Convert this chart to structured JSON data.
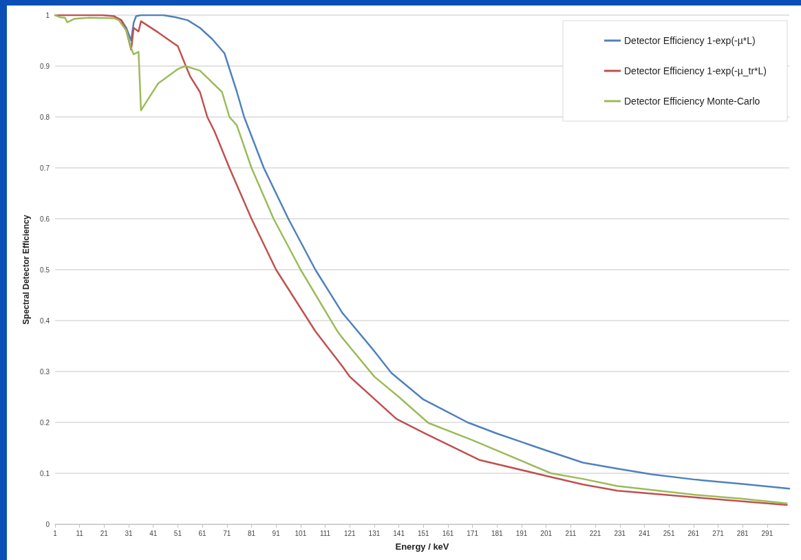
{
  "chart_data": {
    "type": "line",
    "xlabel": "Energy / keV",
    "ylabel": "Spectral Detector Efficiency",
    "xlim": [
      1,
      300
    ],
    "xticks": [
      1,
      11,
      21,
      31,
      41,
      51,
      61,
      71,
      81,
      91,
      101,
      111,
      121,
      131,
      141,
      151,
      161,
      171,
      181,
      191,
      201,
      211,
      221,
      231,
      241,
      251,
      261,
      271,
      281,
      291
    ],
    "ylim": [
      0,
      1
    ],
    "yticks": [
      0,
      0.1,
      0.2,
      0.3,
      0.4,
      0.5,
      0.6,
      0.7,
      0.8,
      0.9,
      1
    ],
    "grid": "y",
    "legend": "top right",
    "marker": "none",
    "line_style": "solid",
    "series": [
      {
        "name": "Detector Efficiency 1-exp(-µ*L)",
        "color": "#4f81bd",
        "x": [
          25,
          28,
          30,
          32,
          33,
          34,
          36,
          45,
          50,
          55,
          60,
          65,
          70,
          75,
          78,
          86,
          96,
          107,
          118,
          121,
          131,
          138,
          151,
          161,
          169,
          181,
          201,
          216,
          230,
          244,
          261,
          281,
          300
        ],
        "values": [
          0.998,
          0.99,
          0.975,
          0.95,
          0.985,
          0.998,
          1,
          1,
          0.996,
          0.99,
          0.975,
          0.953,
          0.925,
          0.85,
          0.8,
          0.7,
          0.6,
          0.5,
          0.415,
          0.398,
          0.34,
          0.297,
          0.245,
          0.22,
          0.2,
          0.178,
          0.145,
          0.121,
          0.109,
          0.098,
          0.088,
          0.079,
          0.07
        ]
      },
      {
        "name": "Detector Efficiency 1-exp(-µ_tr*L)",
        "color": "#c0504d",
        "x": [
          1,
          10,
          20,
          25,
          28,
          30,
          32,
          33,
          35,
          36,
          43,
          51,
          54,
          56,
          60,
          63,
          66,
          72,
          81,
          91,
          107,
          118,
          121,
          140,
          151,
          174,
          201,
          216,
          230,
          261,
          281,
          299
        ],
        "values": [
          1,
          1,
          1,
          0.998,
          0.99,
          0.97,
          0.932,
          0.975,
          0.968,
          0.988,
          0.966,
          0.939,
          0.903,
          0.88,
          0.849,
          0.8,
          0.771,
          0.7,
          0.6,
          0.5,
          0.379,
          0.31,
          0.29,
          0.207,
          0.18,
          0.126,
          0.095,
          0.078,
          0.066,
          0.053,
          0.045,
          0.038
        ]
      },
      {
        "name": "Detector Efficiency Monte-Carlo",
        "color": "#9bbb59",
        "x": [
          1,
          3,
          5,
          6,
          9,
          15,
          25,
          27,
          30,
          32,
          33,
          35,
          36,
          43,
          51,
          54,
          60,
          69,
          72,
          75,
          81,
          90,
          101,
          116,
          118,
          131,
          141,
          153,
          171,
          203,
          216,
          230,
          261,
          281,
          299
        ],
        "values": [
          1,
          0.996,
          0.995,
          0.986,
          0.993,
          0.995,
          0.994,
          0.99,
          0.97,
          0.935,
          0.923,
          0.928,
          0.813,
          0.866,
          0.894,
          0.9,
          0.891,
          0.849,
          0.8,
          0.784,
          0.7,
          0.6,
          0.5,
          0.379,
          0.366,
          0.29,
          0.25,
          0.199,
          0.165,
          0.1,
          0.089,
          0.075,
          0.058,
          0.05,
          0.041
        ]
      }
    ]
  }
}
